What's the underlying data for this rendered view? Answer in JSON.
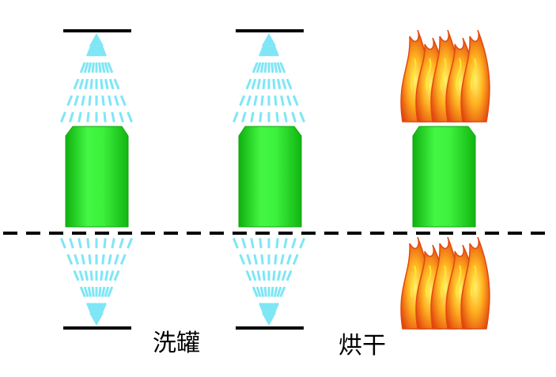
{
  "labels": {
    "wash": "洗罐",
    "dry": "烘干"
  },
  "colors": {
    "can_fill": "#33ee33",
    "can_edge": "#0ea60e",
    "spray": "#7ee6f5",
    "flame_outer": "#e24a10",
    "flame_mid": "#ff9a1a",
    "flame_inner": "#ffe633",
    "line": "#000000"
  },
  "stations": [
    {
      "process": "wash",
      "spray_top": true,
      "spray_bottom": true
    },
    {
      "process": "wash",
      "spray_top": true,
      "spray_bottom": true
    },
    {
      "process": "dry",
      "flame_top": true,
      "flame_bottom": true
    }
  ]
}
